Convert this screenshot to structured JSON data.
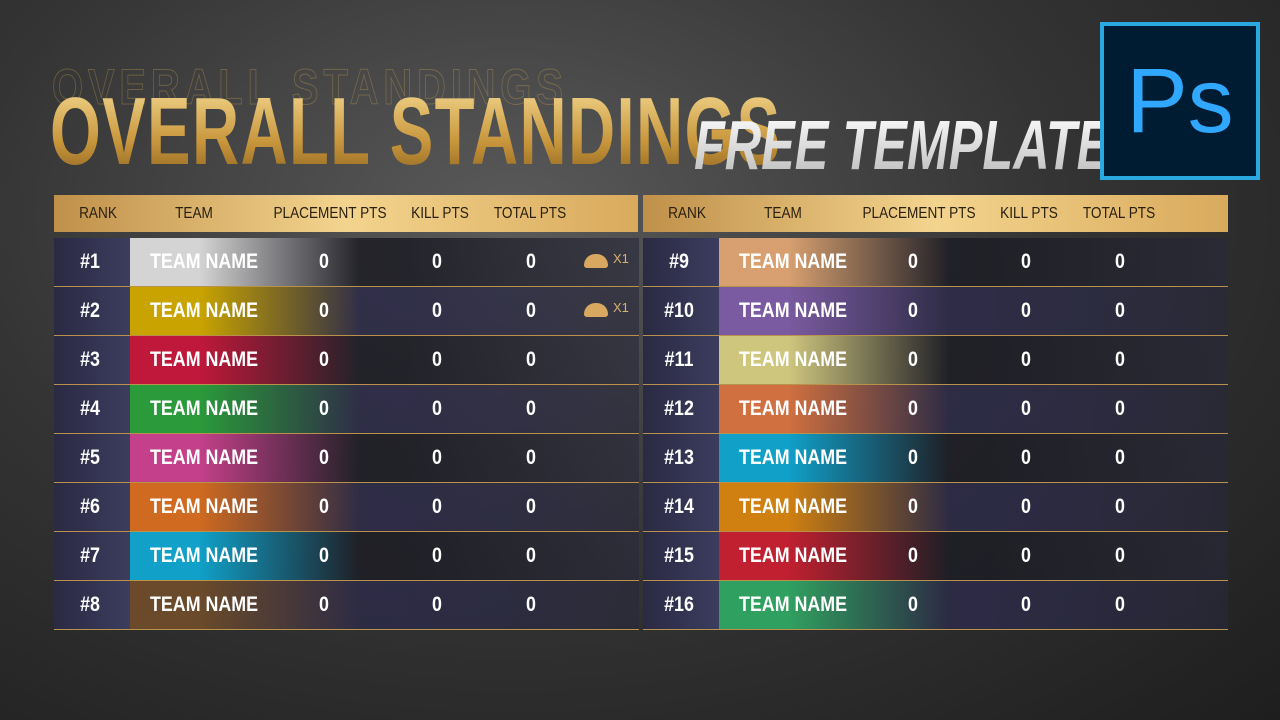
{
  "header": {
    "title": "OVERALL STANDINGS",
    "subtitle": "FREE TEMPLATE",
    "logo": "Ps"
  },
  "tables": [
    {
      "columns": [
        "RANK",
        "TEAM",
        "PLACEMENT PTS",
        "KILL PTS",
        "TOTAL PTS"
      ],
      "rows": [
        {
          "rank": "#1",
          "team": "TEAM NAME",
          "placement": 0,
          "kill": 0,
          "total": 0,
          "badge": "X1",
          "color": "#d4d4d4"
        },
        {
          "rank": "#2",
          "team": "TEAM NAME",
          "placement": 0,
          "kill": 0,
          "total": 0,
          "badge": "X1",
          "color": "#c9a400"
        },
        {
          "rank": "#3",
          "team": "TEAM NAME",
          "placement": 0,
          "kill": 0,
          "total": 0,
          "color": "#c0183a"
        },
        {
          "rank": "#4",
          "team": "TEAM NAME",
          "placement": 0,
          "kill": 0,
          "total": 0,
          "color": "#2a9a3a"
        },
        {
          "rank": "#5",
          "team": "TEAM NAME",
          "placement": 0,
          "kill": 0,
          "total": 0,
          "color": "#c4408a"
        },
        {
          "rank": "#6",
          "team": "TEAM NAME",
          "placement": 0,
          "kill": 0,
          "total": 0,
          "color": "#d06a20"
        },
        {
          "rank": "#7",
          "team": "TEAM NAME",
          "placement": 0,
          "kill": 0,
          "total": 0,
          "color": "#10a0c8"
        },
        {
          "rank": "#8",
          "team": "TEAM NAME",
          "placement": 0,
          "kill": 0,
          "total": 0,
          "color": "#6a4a2a"
        }
      ]
    },
    {
      "columns": [
        "RANK",
        "TEAM",
        "PLACEMENT PTS",
        "KILL PTS",
        "TOTAL PTS"
      ],
      "rows": [
        {
          "rank": "#9",
          "team": "TEAM NAME",
          "placement": 0,
          "kill": 0,
          "total": 0,
          "color": "#d8a070"
        },
        {
          "rank": "#10",
          "team": "TEAM NAME",
          "placement": 0,
          "kill": 0,
          "total": 0,
          "color": "#7a5aa0"
        },
        {
          "rank": "#11",
          "team": "TEAM NAME",
          "placement": 0,
          "kill": 0,
          "total": 0,
          "color": "#cfc67e"
        },
        {
          "rank": "#12",
          "team": "TEAM NAME",
          "placement": 0,
          "kill": 0,
          "total": 0,
          "color": "#d07040"
        },
        {
          "rank": "#13",
          "team": "TEAM NAME",
          "placement": 0,
          "kill": 0,
          "total": 0,
          "color": "#10a0c8"
        },
        {
          "rank": "#14",
          "team": "TEAM NAME",
          "placement": 0,
          "kill": 0,
          "total": 0,
          "color": "#d08010"
        },
        {
          "rank": "#15",
          "team": "TEAM NAME",
          "placement": 0,
          "kill": 0,
          "total": 0,
          "color": "#c02030"
        },
        {
          "rank": "#16",
          "team": "TEAM NAME",
          "placement": 0,
          "kill": 0,
          "total": 0,
          "color": "#30a060"
        }
      ]
    }
  ]
}
